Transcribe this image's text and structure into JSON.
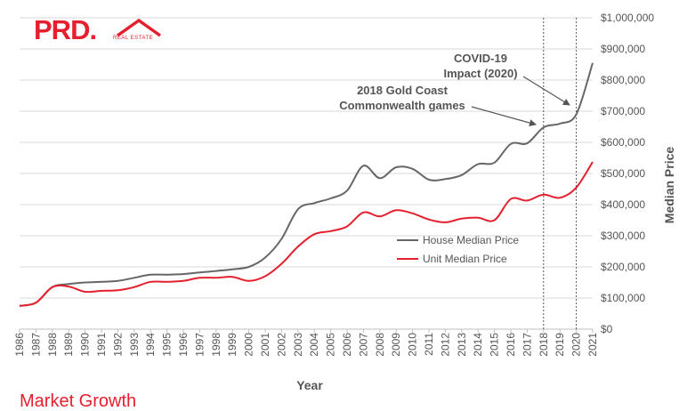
{
  "logo": {
    "text": "PRD.",
    "subtext": "REAL ESTATE"
  },
  "footer": {
    "text": "Market Growth"
  },
  "chart_data": {
    "type": "line",
    "title": "",
    "xlabel": "Year",
    "ylabel": "Median Price",
    "ylim": [
      0,
      1000000
    ],
    "yticks": [
      {
        "value": 0,
        "label": "$0"
      },
      {
        "value": 100000,
        "label": "$100,000"
      },
      {
        "value": 200000,
        "label": "$200,000"
      },
      {
        "value": 300000,
        "label": "$300,000"
      },
      {
        "value": 400000,
        "label": "$400,000"
      },
      {
        "value": 500000,
        "label": "$500,000"
      },
      {
        "value": 600000,
        "label": "$600,000"
      },
      {
        "value": 700000,
        "label": "$700,000"
      },
      {
        "value": 800000,
        "label": "$800,000"
      },
      {
        "value": 900000,
        "label": "$900,000"
      },
      {
        "value": 1000000,
        "label": "$1,000,000"
      }
    ],
    "x": [
      "1986",
      "1987",
      "1988",
      "1989",
      "1990",
      "1991",
      "1992",
      "1993",
      "1994",
      "1995",
      "1996",
      "1997",
      "1998",
      "1999",
      "2000",
      "2001",
      "2002",
      "2003",
      "2004",
      "2005",
      "2006",
      "2007",
      "2008",
      "2009",
      "2010",
      "2011",
      "2012",
      "2013",
      "2014",
      "2015",
      "2016",
      "2017",
      "2018",
      "2019",
      "2020",
      "2021"
    ],
    "series": [
      {
        "name": "House Median Price",
        "color": "#666666",
        "values": [
          75000,
          85000,
          135000,
          145000,
          150000,
          152000,
          155000,
          165000,
          175000,
          175000,
          177000,
          182000,
          187000,
          192000,
          200000,
          230000,
          290000,
          385000,
          405000,
          420000,
          445000,
          525000,
          485000,
          520000,
          515000,
          480000,
          482000,
          495000,
          530000,
          535000,
          595000,
          597000,
          648000,
          660000,
          690000,
          855000
        ]
      },
      {
        "name": "Unit Median Price",
        "color": "#e5202e",
        "values": [
          75000,
          85000,
          135000,
          137000,
          120000,
          123000,
          125000,
          135000,
          152000,
          152000,
          155000,
          165000,
          165000,
          168000,
          155000,
          170000,
          210000,
          265000,
          305000,
          315000,
          330000,
          375000,
          362000,
          382000,
          372000,
          352000,
          343000,
          355000,
          358000,
          350000,
          418000,
          413000,
          432000,
          422000,
          455000,
          537000
        ]
      }
    ],
    "grid": "horizontal",
    "legend": "center-right",
    "reference_lines": [
      {
        "year": "2018"
      },
      {
        "year": "2020"
      }
    ],
    "annotations": [
      {
        "id": "covid",
        "lines": [
          "COVID-19",
          "Impact (2020)"
        ],
        "target_year": "2020"
      },
      {
        "id": "games",
        "lines": [
          "2018 Gold Coast",
          "Commonwealth games"
        ],
        "target_year": "2018"
      }
    ]
  }
}
